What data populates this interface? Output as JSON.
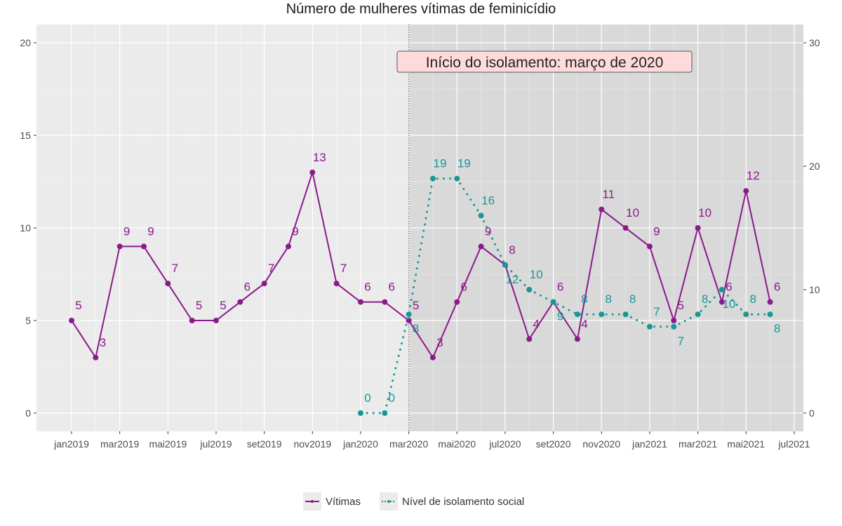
{
  "chart_data": {
    "type": "line",
    "title": "Número de mulheres vítimas de feminicídio",
    "annotation": "Início do isolamento: março de 2020",
    "x_months": [
      "2019-01",
      "2019-02",
      "2019-03",
      "2019-04",
      "2019-05",
      "2019-06",
      "2019-07",
      "2019-08",
      "2019-09",
      "2019-10",
      "2019-11",
      "2019-12",
      "2020-01",
      "2020-02",
      "2020-03",
      "2020-04",
      "2020-05",
      "2020-06",
      "2020-07",
      "2020-08",
      "2020-09",
      "2020-10",
      "2020-11",
      "2020-12",
      "2021-01",
      "2021-02",
      "2021-03",
      "2021-04",
      "2021-05",
      "2021-06"
    ],
    "x_tick_labels": [
      "jan2019",
      "mar2019",
      "mai2019",
      "jul2019",
      "set2019",
      "nov2019",
      "jan2020",
      "mar2020",
      "mai2020",
      "jul2020",
      "set2020",
      "nov2020",
      "jan2021",
      "mar2021",
      "mai2021",
      "jul2021"
    ],
    "y_left_ticks": [
      0,
      5,
      10,
      15,
      20
    ],
    "y_right_ticks": [
      0,
      10,
      20,
      30
    ],
    "ylim_left": [
      0,
      20
    ],
    "ylim_right": [
      0,
      30
    ],
    "grid": true,
    "legend_position": "bottom",
    "isolation_start": "2020-03",
    "series": [
      {
        "name": "Vítimas",
        "axis": "left",
        "style": "solid",
        "color": "#8b1a8b",
        "values": [
          5,
          3,
          9,
          9,
          7,
          5,
          5,
          6,
          7,
          9,
          13,
          7,
          6,
          6,
          5,
          3,
          6,
          9,
          8,
          4,
          6,
          4,
          11,
          10,
          9,
          5,
          10,
          6,
          12,
          6
        ]
      },
      {
        "name": "Nível de isolamento social",
        "axis": "right",
        "style": "dotted",
        "color": "#1a9696",
        "values": [
          null,
          null,
          null,
          null,
          null,
          null,
          null,
          null,
          null,
          null,
          null,
          null,
          0,
          0,
          8,
          19,
          19,
          16,
          12,
          10,
          9,
          8,
          8,
          8,
          7,
          7,
          8,
          10,
          8,
          8
        ]
      }
    ]
  }
}
